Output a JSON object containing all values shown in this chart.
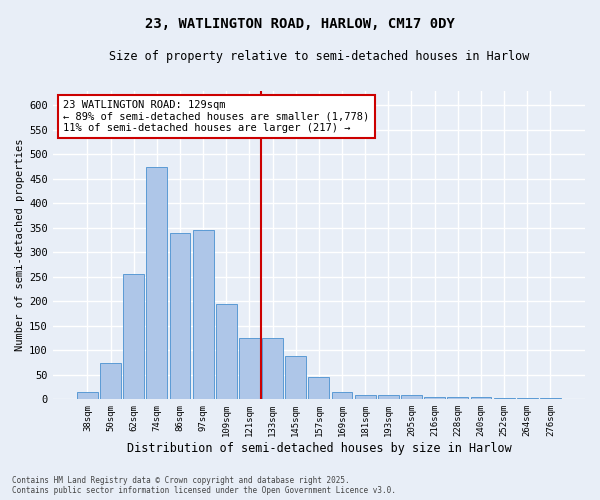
{
  "title1": "23, WATLINGTON ROAD, HARLOW, CM17 0DY",
  "title2": "Size of property relative to semi-detached houses in Harlow",
  "xlabel": "Distribution of semi-detached houses by size in Harlow",
  "ylabel": "Number of semi-detached properties",
  "categories": [
    "38sqm",
    "50sqm",
    "62sqm",
    "74sqm",
    "86sqm",
    "97sqm",
    "109sqm",
    "121sqm",
    "133sqm",
    "145sqm",
    "157sqm",
    "169sqm",
    "181sqm",
    "193sqm",
    "205sqm",
    "216sqm",
    "228sqm",
    "240sqm",
    "252sqm",
    "264sqm",
    "276sqm"
  ],
  "values": [
    15,
    75,
    255,
    475,
    340,
    345,
    195,
    125,
    125,
    88,
    45,
    15,
    8,
    8,
    8,
    5,
    5,
    4,
    3,
    3,
    2
  ],
  "bar_color": "#aec6e8",
  "bar_edge_color": "#5b9bd5",
  "bg_color": "#e8eef7",
  "grid_color": "#ffffff",
  "vline_color": "#cc0000",
  "annotation_text": "23 WATLINGTON ROAD: 129sqm\n← 89% of semi-detached houses are smaller (1,778)\n11% of semi-detached houses are larger (217) →",
  "annotation_box_color": "#ffffff",
  "annotation_box_edge": "#cc0000",
  "footer": "Contains HM Land Registry data © Crown copyright and database right 2025.\nContains public sector information licensed under the Open Government Licence v3.0.",
  "ylim": [
    0,
    630
  ],
  "yticks": [
    0,
    50,
    100,
    150,
    200,
    250,
    300,
    350,
    400,
    450,
    500,
    550,
    600
  ]
}
